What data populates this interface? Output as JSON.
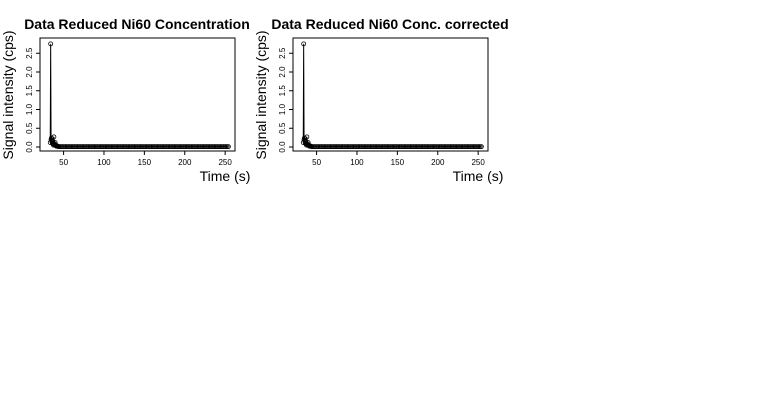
{
  "chart_data": [
    {
      "type": "scatter",
      "title": "Data Reduced Ni60 Concentration",
      "xlabel": "Time (s)",
      "ylabel": "Signal intensity (cps)",
      "xlim": [
        27,
        256
      ],
      "ylim": [
        0,
        2.8
      ],
      "xticks": [
        50,
        100,
        150,
        200,
        250
      ],
      "yticks": [
        0.0,
        0.5,
        1.0,
        1.5,
        2.0,
        2.5
      ],
      "grid": false,
      "series": [
        {
          "x": [
            33.5,
            34.0,
            34.5,
            35.0,
            35.5,
            36.0,
            36.5,
            37.0,
            37.5,
            38.0,
            38.5,
            39.0,
            39.5,
            40.0,
            40.5,
            41.0,
            41.5,
            42.0,
            42.5,
            43.0
          ],
          "y": [
            0.12,
            2.75,
            0.2,
            0.24,
            0.15,
            0.1,
            0.16,
            0.08,
            0.05,
            0.27,
            0.09,
            0.06,
            0.12,
            0.05,
            0.03,
            0.04,
            0.02,
            0.03,
            0.02,
            0.02
          ]
        }
      ],
      "tail": {
        "x_start": 44,
        "x_end": 254,
        "step": 1.5,
        "y": 0.01
      }
    },
    {
      "type": "scatter",
      "title": "Data Reduced Ni60 Conc. corrected",
      "xlabel": "Time (s)",
      "ylabel": "Signal intensity (cps)",
      "xlim": [
        27,
        256
      ],
      "ylim": [
        0,
        2.8
      ],
      "xticks": [
        50,
        100,
        150,
        200,
        250
      ],
      "yticks": [
        0.0,
        0.5,
        1.0,
        1.5,
        2.0,
        2.5
      ],
      "grid": false,
      "series": [
        {
          "x": [
            33.5,
            34.0,
            34.5,
            35.0,
            35.5,
            36.0,
            36.5,
            37.0,
            37.5,
            38.0,
            38.5,
            39.0,
            39.5,
            40.0,
            40.5,
            41.0,
            41.5,
            42.0,
            42.5,
            43.0
          ],
          "y": [
            0.12,
            2.75,
            0.2,
            0.24,
            0.15,
            0.1,
            0.16,
            0.08,
            0.05,
            0.27,
            0.09,
            0.06,
            0.12,
            0.05,
            0.03,
            0.04,
            0.02,
            0.03,
            0.02,
            0.02
          ]
        }
      ],
      "tail": {
        "x_start": 44,
        "x_end": 254,
        "step": 1.5,
        "y": 0.01
      }
    }
  ]
}
